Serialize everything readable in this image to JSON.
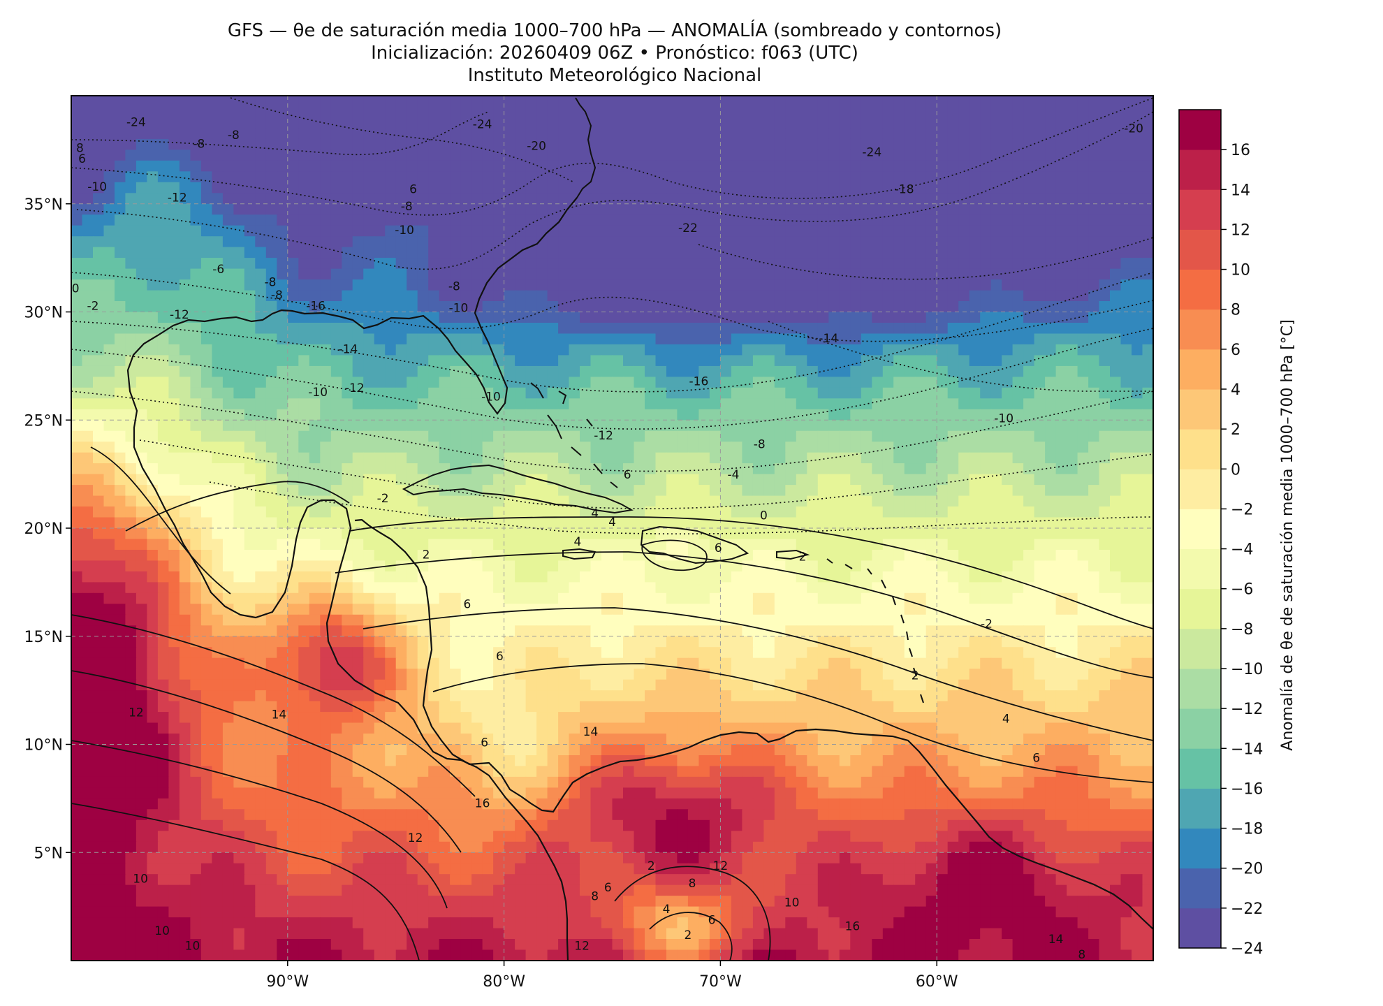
{
  "title": {
    "line1": "GFS — θe de saturación media 1000–700 hPa — ANOMALÍA (sombreado y contornos)",
    "line2": "Inicialización: 20260409 06Z   •   Pronóstico: f063 (UTC)",
    "line3": "Instituto Meteorológico Nacional"
  },
  "map": {
    "lon_range": [
      -100,
      -50
    ],
    "lat_range": [
      0,
      40
    ],
    "gridlines": true,
    "lon_ticks": [
      {
        "value": -90,
        "label": "90°W"
      },
      {
        "value": -80,
        "label": "80°W"
      },
      {
        "value": -70,
        "label": "70°W"
      },
      {
        "value": -60,
        "label": "60°W"
      }
    ],
    "lat_ticks": [
      {
        "value": 35,
        "label": "35°N"
      },
      {
        "value": 30,
        "label": "30°N"
      },
      {
        "value": 25,
        "label": "25°N"
      },
      {
        "value": 20,
        "label": "20°N"
      },
      {
        "value": 15,
        "label": "15°N"
      },
      {
        "value": 10,
        "label": "10°N"
      },
      {
        "value": 5,
        "label": "5°N"
      }
    ]
  },
  "colorbar": {
    "label": "Anomalía de θe de saturación media 1000–700 hPa [°C]",
    "levels": [
      -24,
      -22,
      -20,
      -18,
      -16,
      -14,
      -12,
      -10,
      -8,
      -6,
      -4,
      -2,
      0,
      2,
      4,
      6,
      8,
      10,
      12,
      14,
      16
    ],
    "tick_labels": [
      "−24",
      "−22",
      "−20",
      "−18",
      "−16",
      "−14",
      "−12",
      "−10",
      "−8",
      "−6",
      "−4",
      "−2",
      "0",
      "2",
      "4",
      "6",
      "8",
      "10",
      "12",
      "14",
      "16"
    ],
    "colors": [
      "#5e4fa2",
      "#4a63ad",
      "#3288bd",
      "#4fa6b2",
      "#66c2a5",
      "#8bd1a4",
      "#abdda4",
      "#cbe99e",
      "#e6f598",
      "#f3faad",
      "#fffebe",
      "#feeda2",
      "#fee08b",
      "#fdc777",
      "#fdae61",
      "#f88d52",
      "#f46d43",
      "#e35649",
      "#d53e4f",
      "#bc2049",
      "#9e0142"
    ]
  },
  "contour_labels": [
    {
      "lon": -97.0,
      "lat": 38.6,
      "text": "-24"
    },
    {
      "lon": -81.0,
      "lat": 38.5,
      "text": "-24"
    },
    {
      "lon": -78.5,
      "lat": 37.5,
      "text": "-20"
    },
    {
      "lon": -71.5,
      "lat": 33.7,
      "text": "-22"
    },
    {
      "lon": -63.0,
      "lat": 37.2,
      "text": "-24"
    },
    {
      "lon": -61.5,
      "lat": 35.5,
      "text": "-18"
    },
    {
      "lon": -50.9,
      "lat": 38.3,
      "text": "-20"
    },
    {
      "lon": -92.5,
      "lat": 38.0,
      "text": "-8"
    },
    {
      "lon": -94.1,
      "lat": 37.6,
      "text": "-8"
    },
    {
      "lon": -99.6,
      "lat": 37.4,
      "text": "8"
    },
    {
      "lon": -99.5,
      "lat": 36.9,
      "text": "6"
    },
    {
      "lon": -98.8,
      "lat": 35.6,
      "text": "-10"
    },
    {
      "lon": -95.1,
      "lat": 35.1,
      "text": "-12"
    },
    {
      "lon": -84.2,
      "lat": 35.5,
      "text": "6"
    },
    {
      "lon": -84.5,
      "lat": 34.7,
      "text": "-8"
    },
    {
      "lon": -84.6,
      "lat": 33.6,
      "text": "-10"
    },
    {
      "lon": -93.2,
      "lat": 31.8,
      "text": "-6"
    },
    {
      "lon": -90.8,
      "lat": 31.2,
      "text": "-8"
    },
    {
      "lon": -90.5,
      "lat": 30.6,
      "text": "-8"
    },
    {
      "lon": -88.7,
      "lat": 30.1,
      "text": "-16"
    },
    {
      "lon": -99.9,
      "lat": 30.9,
      "text": "-0"
    },
    {
      "lon": -99.0,
      "lat": 30.1,
      "text": "-2"
    },
    {
      "lon": -95.0,
      "lat": 29.7,
      "text": "-12"
    },
    {
      "lon": -82.1,
      "lat": 30.0,
      "text": "-10"
    },
    {
      "lon": -82.3,
      "lat": 31.0,
      "text": "-8"
    },
    {
      "lon": -87.2,
      "lat": 28.1,
      "text": "-14"
    },
    {
      "lon": -86.9,
      "lat": 26.3,
      "text": "-12"
    },
    {
      "lon": -88.6,
      "lat": 26.1,
      "text": "-10"
    },
    {
      "lon": -80.6,
      "lat": 25.9,
      "text": "-10"
    },
    {
      "lon": -75.4,
      "lat": 24.1,
      "text": "-12"
    },
    {
      "lon": -71.0,
      "lat": 26.6,
      "text": "-16"
    },
    {
      "lon": -65.0,
      "lat": 28.6,
      "text": "-14"
    },
    {
      "lon": -56.9,
      "lat": 24.9,
      "text": "-10"
    },
    {
      "lon": -68.2,
      "lat": 23.7,
      "text": "-8"
    },
    {
      "lon": -74.3,
      "lat": 22.3,
      "text": "6"
    },
    {
      "lon": -69.4,
      "lat": 22.3,
      "text": "-4"
    },
    {
      "lon": -85.6,
      "lat": 21.2,
      "text": "-2"
    },
    {
      "lon": -68.0,
      "lat": 20.4,
      "text": "0"
    },
    {
      "lon": -75.8,
      "lat": 20.5,
      "text": "4"
    },
    {
      "lon": -76.6,
      "lat": 19.2,
      "text": "4"
    },
    {
      "lon": -75.0,
      "lat": 20.1,
      "text": "4"
    },
    {
      "lon": -83.6,
      "lat": 18.6,
      "text": "2"
    },
    {
      "lon": -70.1,
      "lat": 18.9,
      "text": "6"
    },
    {
      "lon": -66.2,
      "lat": 18.5,
      "text": "2"
    },
    {
      "lon": -81.7,
      "lat": 16.3,
      "text": "6"
    },
    {
      "lon": -57.7,
      "lat": 15.4,
      "text": "-2"
    },
    {
      "lon": -80.2,
      "lat": 13.9,
      "text": "6"
    },
    {
      "lon": -61.0,
      "lat": 13.0,
      "text": "2"
    },
    {
      "lon": -90.4,
      "lat": 11.2,
      "text": "14"
    },
    {
      "lon": -97.0,
      "lat": 11.3,
      "text": "12"
    },
    {
      "lon": -80.9,
      "lat": 9.9,
      "text": "6"
    },
    {
      "lon": -76.0,
      "lat": 10.4,
      "text": "14"
    },
    {
      "lon": -56.8,
      "lat": 11.0,
      "text": "4"
    },
    {
      "lon": -55.4,
      "lat": 9.2,
      "text": "6"
    },
    {
      "lon": -81.0,
      "lat": 7.1,
      "text": "16"
    },
    {
      "lon": -84.1,
      "lat": 5.5,
      "text": "12"
    },
    {
      "lon": -96.8,
      "lat": 3.6,
      "text": "10"
    },
    {
      "lon": -95.8,
      "lat": 1.2,
      "text": "10"
    },
    {
      "lon": -94.4,
      "lat": 0.5,
      "text": "10"
    },
    {
      "lon": -73.2,
      "lat": 4.2,
      "text": "2"
    },
    {
      "lon": -71.3,
      "lat": 3.4,
      "text": "8"
    },
    {
      "lon": -70.4,
      "lat": 1.7,
      "text": "6"
    },
    {
      "lon": -66.7,
      "lat": 2.5,
      "text": "10"
    },
    {
      "lon": -72.5,
      "lat": 2.2,
      "text": "4"
    },
    {
      "lon": -71.5,
      "lat": 1.0,
      "text": "2"
    },
    {
      "lon": -75.2,
      "lat": 3.2,
      "text": "6"
    },
    {
      "lon": -75.8,
      "lat": 2.8,
      "text": "8"
    },
    {
      "lon": -54.5,
      "lat": 0.8,
      "text": "14"
    },
    {
      "lon": -63.9,
      "lat": 1.4,
      "text": "16"
    },
    {
      "lon": -53.3,
      "lat": 0.1,
      "text": "8"
    },
    {
      "lon": -70.0,
      "lat": 4.2,
      "text": "12"
    },
    {
      "lon": -76.4,
      "lat": 0.5,
      "text": "12"
    }
  ]
}
